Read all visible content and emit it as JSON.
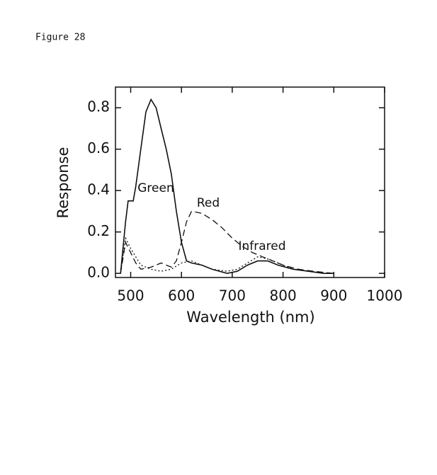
{
  "figure_label": "Figure 28",
  "chart_data": {
    "type": "line",
    "x_label": "Wavelength (nm)",
    "y_label": "Response",
    "xlim": [
      470,
      1000
    ],
    "xticks": [
      500,
      600,
      700,
      800,
      900,
      1000
    ],
    "ylim": [
      -0.02,
      0.9
    ],
    "yticks": [
      {
        "value": 0,
        "label": "0.0"
      },
      {
        "value": 0.2,
        "label": "0.2"
      },
      {
        "value": 0.4,
        "label": "0.4"
      },
      {
        "value": 0.6,
        "label": "0.6"
      },
      {
        "value": 0.8,
        "label": "0.8"
      }
    ],
    "series": [
      {
        "name": "Green",
        "color": "#111111",
        "dash": "solid",
        "x": [
          480,
          490,
          495,
          505,
          510,
          520,
          530,
          540,
          550,
          560,
          570,
          580,
          590,
          600,
          610,
          620,
          640,
          660,
          690,
          710,
          730,
          750,
          770,
          790,
          820,
          850,
          880,
          900
        ],
        "values": [
          0,
          0.25,
          0.35,
          0.35,
          0.42,
          0.6,
          0.78,
          0.84,
          0.8,
          0.7,
          0.6,
          0.48,
          0.3,
          0.15,
          0.06,
          0.05,
          0.04,
          0.02,
          0,
          0.01,
          0.04,
          0.06,
          0.06,
          0.04,
          0.02,
          0.01,
          0,
          0
        ]
      },
      {
        "name": "Red",
        "color": "#111111",
        "dash": "dashed",
        "x": [
          480,
          490,
          500,
          510,
          520,
          540,
          560,
          580,
          590,
          600,
          610,
          620,
          640,
          660,
          680,
          700,
          720,
          740,
          760,
          780,
          800,
          830,
          860,
          900
        ],
        "values": [
          0,
          0.15,
          0.1,
          0.05,
          0.02,
          0.03,
          0.05,
          0.03,
          0.06,
          0.15,
          0.25,
          0.3,
          0.29,
          0.26,
          0.22,
          0.17,
          0.13,
          0.1,
          0.08,
          0.06,
          0.04,
          0.02,
          0.01,
          0
        ]
      },
      {
        "name": "Infrared",
        "color": "#111111",
        "dash": "dotted",
        "x": [
          480,
          490,
          500,
          510,
          520,
          540,
          560,
          580,
          600,
          620,
          640,
          660,
          690,
          710,
          730,
          750,
          770,
          790,
          820,
          850,
          880,
          900
        ],
        "values": [
          0,
          0.17,
          0.12,
          0.08,
          0.04,
          0.02,
          0.01,
          0.02,
          0.05,
          0.06,
          0.04,
          0.02,
          0.01,
          0.02,
          0.05,
          0.08,
          0.07,
          0.05,
          0.02,
          0.01,
          0,
          0
        ]
      }
    ]
  }
}
